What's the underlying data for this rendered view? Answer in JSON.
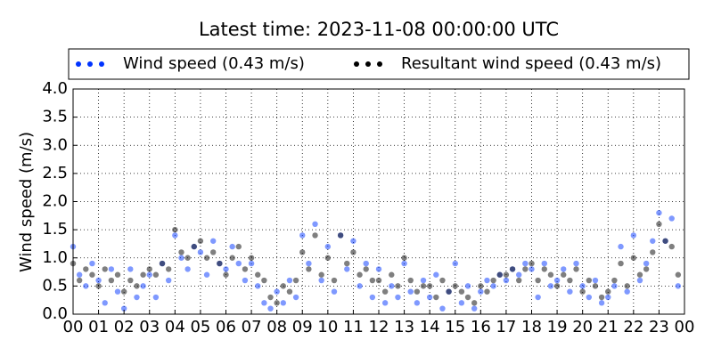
{
  "chart_data": {
    "type": "scatter",
    "title": "Latest time: 2023-11-08 00:00:00 UTC",
    "ylabel": "Wind speed (m/s)",
    "x": [
      0,
      0.25,
      0.5,
      0.75,
      1,
      1.25,
      1.5,
      1.75,
      2,
      2.25,
      2.5,
      2.75,
      3,
      3.25,
      3.5,
      3.75,
      4,
      4.25,
      4.5,
      4.75,
      5,
      5.25,
      5.5,
      5.75,
      6,
      6.25,
      6.5,
      6.75,
      7,
      7.25,
      7.5,
      7.75,
      8,
      8.25,
      8.5,
      8.75,
      9,
      9.25,
      9.5,
      9.75,
      10,
      10.25,
      10.5,
      10.75,
      11,
      11.25,
      11.5,
      11.75,
      12,
      12.25,
      12.5,
      12.75,
      13,
      13.25,
      13.5,
      13.75,
      14,
      14.25,
      14.5,
      14.75,
      15,
      15.25,
      15.5,
      15.75,
      16,
      16.25,
      16.5,
      16.75,
      17,
      17.25,
      17.5,
      17.75,
      18,
      18.25,
      18.5,
      18.75,
      19,
      19.25,
      19.5,
      19.75,
      20,
      20.25,
      20.5,
      20.75,
      21,
      21.25,
      21.5,
      21.75,
      22,
      22.25,
      22.5,
      22.75,
      23,
      23.25,
      23.5,
      23.75
    ],
    "series": [
      {
        "name": "Wind speed (0.43 m/s)",
        "color": "#0033ff",
        "values": [
          1.2,
          0.7,
          0.5,
          0.9,
          0.6,
          0.2,
          0.8,
          0.4,
          0.1,
          0.8,
          0.3,
          0.5,
          0.7,
          0.3,
          0.9,
          0.6,
          1.4,
          1.0,
          0.8,
          1.2,
          1.1,
          0.7,
          1.3,
          0.9,
          0.8,
          1.2,
          0.9,
          0.6,
          0.9,
          0.5,
          0.2,
          0.1,
          0.4,
          0.2,
          0.6,
          0.3,
          1.4,
          0.9,
          1.6,
          0.6,
          1.2,
          0.4,
          1.4,
          0.8,
          1.3,
          0.5,
          0.9,
          0.3,
          0.8,
          0.2,
          0.5,
          0.3,
          0.9,
          0.4,
          0.2,
          0.6,
          0.3,
          0.7,
          0.1,
          0.4,
          0.9,
          0.2,
          0.5,
          0.1,
          0.4,
          0.6,
          0.5,
          0.7,
          0.6,
          0.8,
          0.7,
          0.9,
          0.8,
          0.3,
          0.9,
          0.5,
          0.6,
          0.8,
          0.4,
          0.9,
          0.5,
          0.3,
          0.6,
          0.2,
          0.3,
          0.5,
          1.2,
          0.4,
          1.4,
          0.6,
          0.9,
          1.3,
          1.8,
          1.3,
          1.7,
          0.5
        ]
      },
      {
        "name": "Resultant wind speed (0.43 m/s)",
        "color": "#000000",
        "values": [
          0.9,
          0.6,
          0.8,
          0.7,
          0.5,
          0.8,
          0.6,
          0.7,
          0.4,
          0.6,
          0.5,
          0.7,
          0.8,
          0.7,
          0.9,
          0.8,
          1.5,
          1.1,
          1.0,
          1.2,
          1.3,
          1.0,
          1.1,
          0.9,
          0.7,
          1.0,
          1.2,
          0.8,
          1.0,
          0.7,
          0.6,
          0.3,
          0.2,
          0.5,
          0.4,
          0.6,
          1.1,
          0.8,
          1.4,
          0.7,
          1.0,
          0.6,
          1.4,
          0.9,
          1.1,
          0.7,
          0.8,
          0.6,
          0.6,
          0.4,
          0.7,
          0.5,
          1.0,
          0.6,
          0.4,
          0.5,
          0.5,
          0.3,
          0.6,
          0.4,
          0.5,
          0.4,
          0.3,
          0.2,
          0.5,
          0.4,
          0.6,
          0.7,
          0.7,
          0.8,
          0.6,
          0.8,
          0.9,
          0.6,
          0.8,
          0.7,
          0.5,
          0.7,
          0.6,
          0.8,
          0.4,
          0.6,
          0.5,
          0.3,
          0.4,
          0.6,
          0.9,
          0.5,
          1.0,
          0.7,
          0.8,
          1.1,
          1.6,
          1.3,
          1.2,
          0.7
        ]
      }
    ],
    "xlim": [
      0,
      24
    ],
    "xticks": [
      {
        "value": 0,
        "label": "00"
      },
      {
        "value": 1,
        "label": "01"
      },
      {
        "value": 2,
        "label": "02"
      },
      {
        "value": 3,
        "label": "03"
      },
      {
        "value": 4,
        "label": "04"
      },
      {
        "value": 5,
        "label": "05"
      },
      {
        "value": 6,
        "label": "06"
      },
      {
        "value": 7,
        "label": "07"
      },
      {
        "value": 8,
        "label": "08"
      },
      {
        "value": 9,
        "label": "09"
      },
      10,
      11,
      12,
      13,
      14,
      15,
      16,
      17,
      18,
      19,
      20,
      21,
      22,
      23,
      {
        "value": 24,
        "label": "00"
      }
    ],
    "ylim": [
      0,
      4
    ],
    "yticks": [
      {
        "value": 0,
        "label": "0.0"
      },
      0.5,
      {
        "value": 1,
        "label": "1.0"
      },
      1.5,
      {
        "value": 2,
        "label": "2.0"
      },
      2.5,
      {
        "value": 3,
        "label": "3.0"
      },
      3.5,
      {
        "value": 4,
        "label": "4.0"
      }
    ],
    "grid": true,
    "legend": "top"
  }
}
